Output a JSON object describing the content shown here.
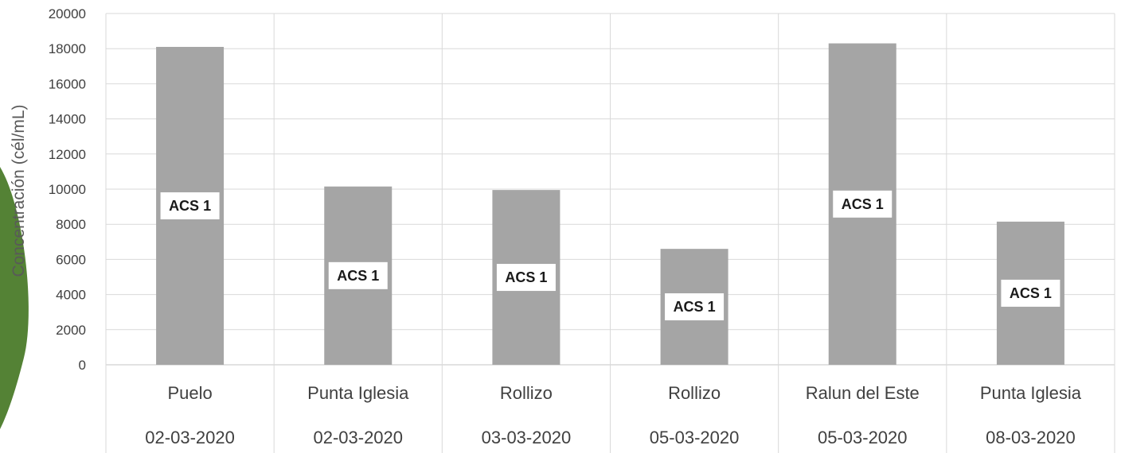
{
  "chart_data": {
    "type": "bar",
    "categories": [
      {
        "site": "Puelo",
        "date": "02-03-2020"
      },
      {
        "site": "Punta Iglesia",
        "date": "02-03-2020"
      },
      {
        "site": "Rollizo",
        "date": "03-03-2020"
      },
      {
        "site": "Rollizo",
        "date": "05-03-2020"
      },
      {
        "site": "Ralun del Este",
        "date": "05-03-2020"
      },
      {
        "site": "Punta Iglesia",
        "date": "08-03-2020"
      }
    ],
    "values": [
      18100,
      10150,
      9950,
      6600,
      18300,
      8150
    ],
    "data_labels": [
      "ACS 1",
      "ACS 1",
      "ACS 1",
      "ACS 1",
      "ACS 1",
      "ACS 1"
    ],
    "title": "",
    "xlabel": "",
    "ylabel": "Concentración (cél/mL)",
    "ylim": [
      0,
      20000
    ],
    "yticks": [
      "0",
      "2000",
      "4000",
      "6000",
      "8000",
      "10000",
      "12000",
      "14000",
      "16000",
      "18000",
      "20000"
    ],
    "grid": true,
    "colors": {
      "bar": "#a5a5a5",
      "grid": "#d9d9d9",
      "accent_shape": "#548235"
    }
  }
}
